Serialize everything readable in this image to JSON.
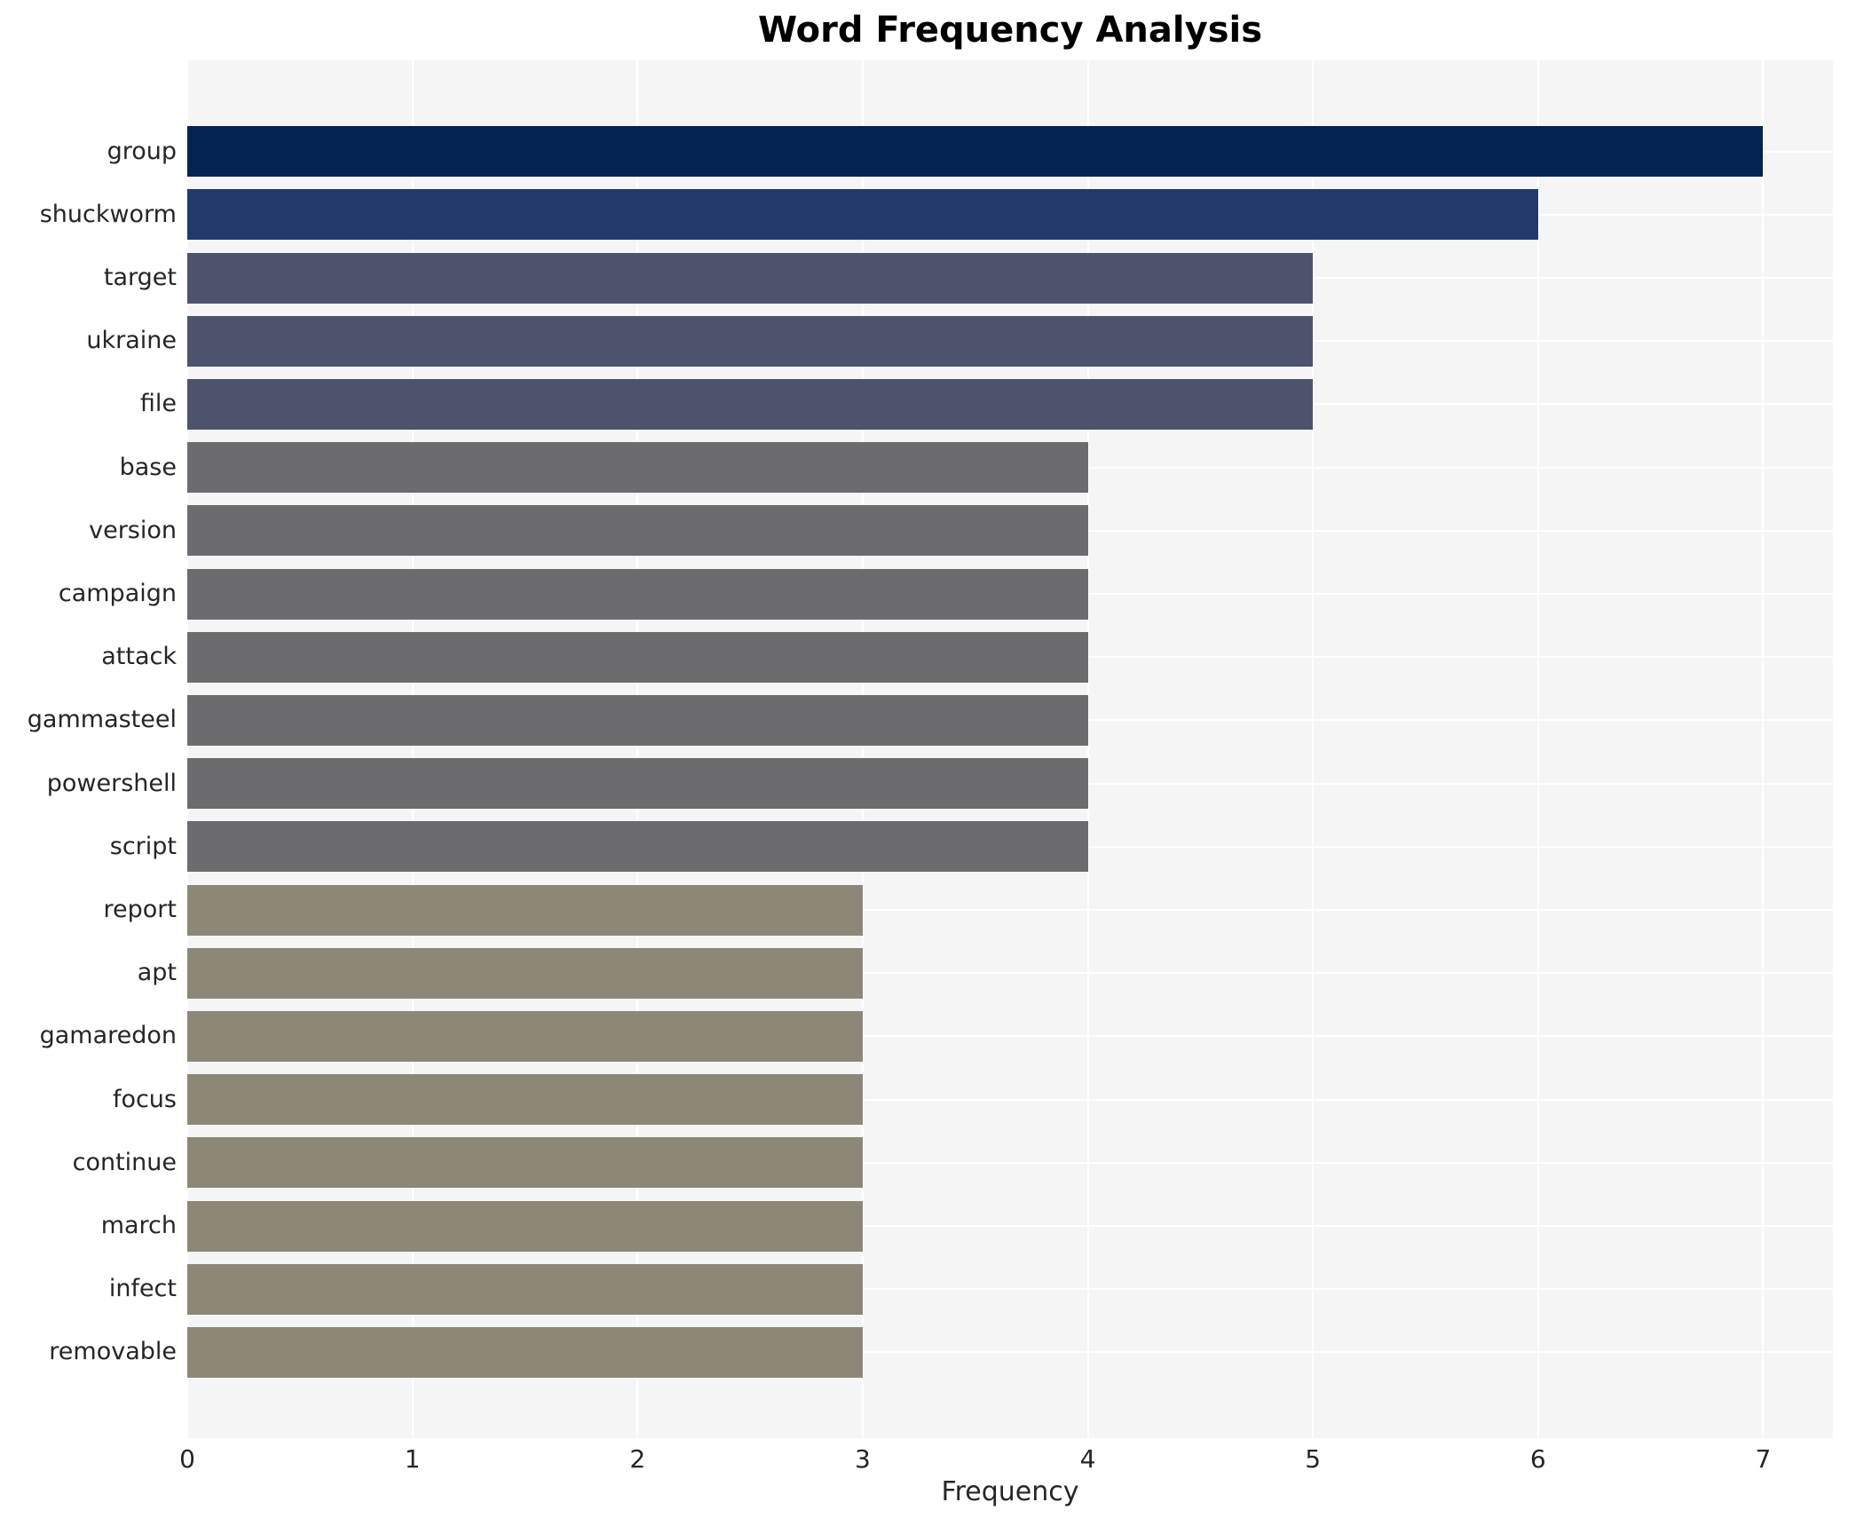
{
  "figure": {
    "background_color": "#ffffff",
    "plot_background_color": "#f5f5f6",
    "grid_color": "#ffffff",
    "text_color": "#262626"
  },
  "chart_data": {
    "type": "bar",
    "orientation": "horizontal",
    "title": "Word Frequency Analysis",
    "xlabel": "Frequency",
    "ylabel": "",
    "categories": [
      "group",
      "shuckworm",
      "target",
      "ukraine",
      "file",
      "base",
      "version",
      "campaign",
      "attack",
      "gammasteel",
      "powershell",
      "script",
      "report",
      "apt",
      "gamaredon",
      "focus",
      "continue",
      "march",
      "infect",
      "removable"
    ],
    "values": [
      7,
      6,
      5,
      5,
      5,
      4,
      4,
      4,
      4,
      4,
      4,
      4,
      3,
      3,
      3,
      3,
      3,
      3,
      3,
      3
    ],
    "xticks": [
      0,
      1,
      2,
      3,
      4,
      5,
      6,
      7
    ],
    "xlim": [
      0,
      7.31
    ],
    "grid": true,
    "legend": false,
    "bar_colors_by_value": {
      "7": "#04234e",
      "6": "#22396a",
      "5": "#4c546d",
      "4": "#6c6c70",
      "3": "#8c8777"
    }
  }
}
